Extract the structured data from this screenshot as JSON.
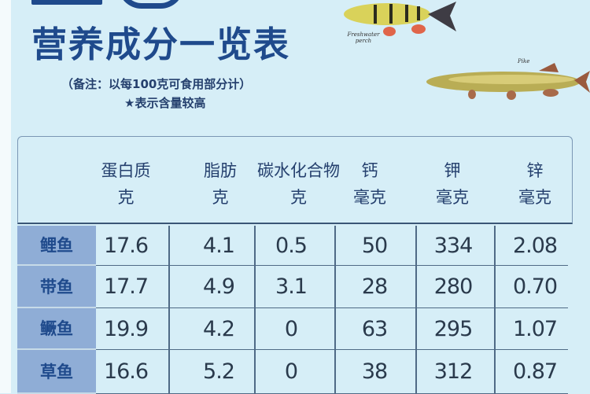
{
  "title": "营养成分一览表",
  "note": "（备注：以每100克可食用部分计）",
  "star_note": "★表示含量较高",
  "illustrations": [
    {
      "name": "freshwater-perch",
      "caption": "Freshwater perch"
    },
    {
      "name": "pike",
      "caption": "Pike"
    }
  ],
  "table": {
    "columns": [
      {
        "name": "蛋白质",
        "unit": "克"
      },
      {
        "name": "脂肪",
        "unit": "克"
      },
      {
        "name": "碳水化合物",
        "unit": "克"
      },
      {
        "name": "钙",
        "unit": "毫克"
      },
      {
        "name": "钾",
        "unit": "毫克"
      },
      {
        "name": "锌",
        "unit": "毫克"
      }
    ],
    "rows": [
      {
        "fish": "鲤鱼",
        "values": [
          "17.6",
          "4.1",
          "0.5",
          "50",
          "334",
          "2.08"
        ]
      },
      {
        "fish": "带鱼",
        "values": [
          "17.7",
          "4.9",
          "3.1",
          "28",
          "280",
          "0.70"
        ]
      },
      {
        "fish": "鳜鱼",
        "values": [
          "19.9",
          "4.2",
          "0",
          "63",
          "295",
          "1.07"
        ]
      },
      {
        "fish": "草鱼",
        "values": [
          "16.6",
          "5.2",
          "0",
          "38",
          "312",
          "0.87"
        ]
      }
    ]
  },
  "colors": {
    "title": "#1f4a8c",
    "background": "#d6eef7",
    "row_label": "#8fadd6"
  }
}
